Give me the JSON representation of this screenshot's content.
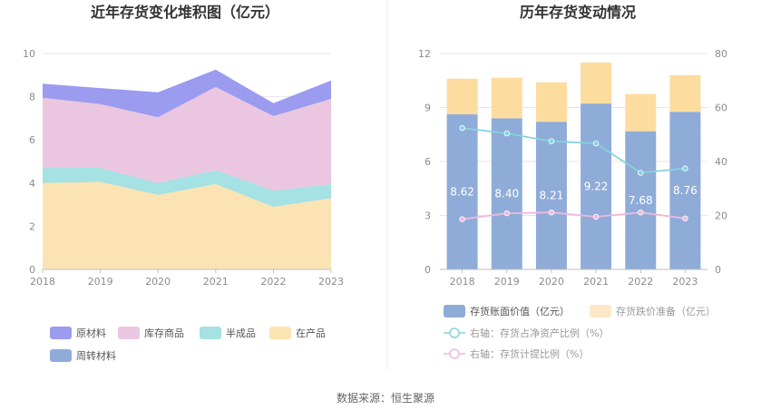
{
  "source": "数据来源：恒生聚源",
  "chart_data": [
    {
      "type": "area",
      "title": "近年存货变化堆积图（亿元）",
      "x": [
        "2018",
        "2019",
        "2020",
        "2021",
        "2022",
        "2023"
      ],
      "ylim": [
        0,
        10
      ],
      "yticks": [
        "0",
        "2",
        "4",
        "6",
        "8",
        "10"
      ],
      "grid": true,
      "legend_position": "bottom",
      "series": [
        {
          "name": "在产品",
          "color": "#fce3b3",
          "values": [
            4.0,
            4.05,
            3.45,
            3.95,
            2.9,
            3.3
          ]
        },
        {
          "name": "半成品",
          "color": "#a6e1e3",
          "values": [
            0.75,
            0.65,
            0.55,
            0.65,
            0.75,
            0.65
          ]
        },
        {
          "name": "库存商品",
          "color": "#ebc6e0",
          "values": [
            3.2,
            2.95,
            3.05,
            3.85,
            3.45,
            3.95
          ]
        },
        {
          "name": "原材料",
          "color": "#9b9bf0",
          "values": [
            0.65,
            0.75,
            1.15,
            0.8,
            0.6,
            0.85
          ]
        },
        {
          "name": "周转材料",
          "color": "#8facd9",
          "values": [
            0,
            0,
            0,
            0,
            0,
            0
          ]
        }
      ],
      "legend_order": [
        "原材料",
        "库存商品",
        "半成品",
        "在产品",
        "周转材料"
      ]
    },
    {
      "type": "bar",
      "title": "历年存货变动情况",
      "categories": [
        "2018",
        "2019",
        "2020",
        "2021",
        "2022",
        "2023"
      ],
      "ylim": [
        0,
        12
      ],
      "yticks": [
        "0",
        "3",
        "6",
        "9",
        "12"
      ],
      "y2lim": [
        0,
        80
      ],
      "y2ticks": [
        "0",
        "20",
        "40",
        "60",
        "80"
      ],
      "stacked": true,
      "legend_position": "bottom",
      "series": [
        {
          "name": "存货账面价值（亿元）",
          "color": "#8facd9",
          "axis": "left",
          "kind": "bar",
          "values": [
            8.62,
            8.4,
            8.21,
            9.22,
            7.68,
            8.76
          ],
          "labels": [
            "8.62",
            "8.40",
            "8.21",
            "9.22",
            "7.68",
            "8.76"
          ]
        },
        {
          "name": "存货跌价准备（亿元）",
          "color": "#fddc9f",
          "axis": "left",
          "kind": "bar",
          "values": [
            1.98,
            2.25,
            2.19,
            2.28,
            2.07,
            2.04
          ]
        },
        {
          "name": "右轴：存货占净资产比例（%）",
          "color": "#86d3dc",
          "axis": "right",
          "kind": "line",
          "values": [
            52.4,
            50.4,
            47.5,
            46.7,
            35.8,
            37.4
          ]
        },
        {
          "name": "右轴：存货计提比例（%）",
          "color": "#f0b8de",
          "axis": "right",
          "kind": "line",
          "values": [
            18.6,
            20.8,
            21.1,
            19.5,
            21.1,
            18.9
          ]
        }
      ]
    }
  ]
}
